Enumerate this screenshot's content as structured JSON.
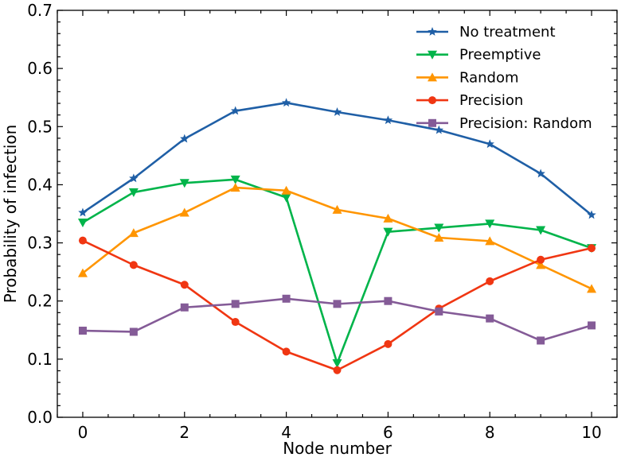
{
  "chart_data": {
    "type": "line",
    "xlabel": "Node number",
    "ylabel": "Probability of infection",
    "xlim": [
      -0.5,
      10.5
    ],
    "ylim": [
      0.0,
      0.7
    ],
    "xticks": [
      0,
      2,
      4,
      6,
      8,
      10
    ],
    "xtick_labels": [
      "0",
      "2",
      "4",
      "6",
      "8",
      "10"
    ],
    "yticks": [
      0.0,
      0.1,
      0.2,
      0.3,
      0.4,
      0.5,
      0.6,
      0.7
    ],
    "ytick_labels": [
      "0.0",
      "0.1",
      "0.2",
      "0.3",
      "0.4",
      "0.5",
      "0.6",
      "0.7"
    ],
    "grid": false,
    "legend_position": "top-right",
    "x": [
      0,
      1,
      2,
      3,
      4,
      5,
      6,
      7,
      8,
      9,
      10
    ],
    "series": [
      {
        "name": "No treatment",
        "color": "#1f5fa6",
        "marker": "star",
        "values": [
          0.352,
          0.411,
          0.479,
          0.527,
          0.541,
          0.525,
          0.511,
          0.494,
          0.47,
          0.419,
          0.348
        ]
      },
      {
        "name": "Preemptive",
        "color": "#00b44a",
        "marker": "triangle-down",
        "values": [
          0.335,
          0.387,
          0.403,
          0.409,
          0.378,
          0.093,
          0.319,
          0.326,
          0.333,
          0.322,
          0.291
        ]
      },
      {
        "name": "Random",
        "color": "#ff9500",
        "marker": "triangle-up",
        "values": [
          0.248,
          0.317,
          0.352,
          0.395,
          0.39,
          0.357,
          0.342,
          0.309,
          0.303,
          0.262,
          0.221
        ]
      },
      {
        "name": "Precision",
        "color": "#f03612",
        "marker": "circle",
        "values": [
          0.304,
          0.262,
          0.228,
          0.164,
          0.113,
          0.081,
          0.126,
          0.187,
          0.234,
          0.271,
          0.291
        ]
      },
      {
        "name": "Precision: Random",
        "color": "#845b97",
        "marker": "square",
        "values": [
          0.149,
          0.147,
          0.189,
          0.195,
          0.204,
          0.195,
          0.2,
          0.182,
          0.17,
          0.132,
          0.158
        ]
      }
    ]
  }
}
